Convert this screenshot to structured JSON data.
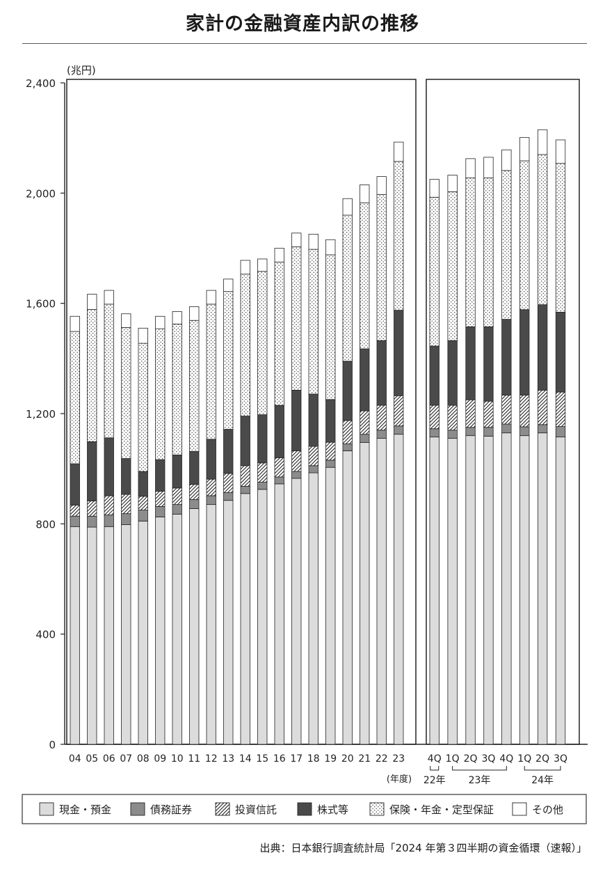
{
  "title": "家計の金融資産内訳の推移",
  "source": "出典：日本銀行調査統計局「2024 年第３四半期の資金循環（速報）」",
  "chart_data": {
    "type": "bar",
    "stacked": true,
    "unit_label": "(兆円)",
    "xlabel": "(年度)",
    "ylim": [
      0,
      2400
    ],
    "yticks": [
      0,
      400,
      800,
      1200,
      1600,
      2000,
      2400
    ],
    "ytick_labels": [
      "0",
      "400",
      "800",
      "1,200",
      "1,600",
      "2,000",
      "2,400"
    ],
    "grid": false,
    "legend_position": "bottom",
    "categories": [
      "04",
      "05",
      "06",
      "07",
      "08",
      "09",
      "10",
      "11",
      "12",
      "13",
      "14",
      "15",
      "16",
      "17",
      "18",
      "19",
      "20",
      "21",
      "22",
      "23",
      "4Q",
      "1Q",
      "2Q",
      "3Q",
      "4Q",
      "1Q",
      "2Q",
      "3Q"
    ],
    "panels": [
      {
        "name": "annual",
        "range": [
          0,
          19
        ]
      },
      {
        "name": "quarterly",
        "range": [
          20,
          27
        ]
      }
    ],
    "year_groups": [
      {
        "label": "22年",
        "range": [
          20,
          20
        ]
      },
      {
        "label": "23年",
        "range": [
          21,
          24
        ]
      },
      {
        "label": "24年",
        "range": [
          25,
          27
        ]
      }
    ],
    "series": [
      {
        "name": "現金・預金",
        "pattern": "light",
        "values": [
          790,
          788,
          790,
          797,
          810,
          825,
          835,
          855,
          870,
          885,
          910,
          925,
          945,
          965,
          985,
          1005,
          1065,
          1095,
          1110,
          1125,
          1115,
          1110,
          1120,
          1118,
          1130,
          1120,
          1130,
          1115
        ]
      },
      {
        "name": "債務証券",
        "pattern": "mid",
        "values": [
          38,
          40,
          42,
          40,
          40,
          38,
          35,
          33,
          32,
          28,
          26,
          26,
          25,
          25,
          26,
          26,
          25,
          30,
          30,
          30,
          30,
          30,
          30,
          32,
          32,
          32,
          30,
          38
        ]
      },
      {
        "name": "投資信託",
        "pattern": "hatch",
        "values": [
          40,
          55,
          70,
          70,
          50,
          55,
          60,
          55,
          60,
          70,
          75,
          70,
          70,
          75,
          70,
          65,
          85,
          85,
          90,
          110,
          85,
          90,
          100,
          95,
          105,
          115,
          125,
          125
        ]
      },
      {
        "name": "株式等",
        "pattern": "dark",
        "values": [
          150,
          215,
          210,
          130,
          90,
          115,
          120,
          120,
          145,
          160,
          180,
          175,
          190,
          220,
          190,
          155,
          215,
          225,
          235,
          310,
          215,
          235,
          265,
          270,
          275,
          310,
          310,
          290
        ]
      },
      {
        "name": "保険・年金・定型保証",
        "pattern": "dots",
        "values": [
          480,
          480,
          485,
          475,
          465,
          475,
          475,
          475,
          490,
          500,
          515,
          520,
          520,
          520,
          525,
          525,
          530,
          530,
          530,
          540,
          540,
          540,
          540,
          540,
          540,
          540,
          545,
          540
        ]
      },
      {
        "name": "その他",
        "pattern": "white",
        "values": [
          55,
          55,
          50,
          50,
          55,
          45,
          45,
          50,
          50,
          45,
          50,
          45,
          50,
          50,
          55,
          55,
          60,
          65,
          65,
          70,
          65,
          60,
          70,
          75,
          75,
          85,
          90,
          85
        ]
      }
    ]
  }
}
